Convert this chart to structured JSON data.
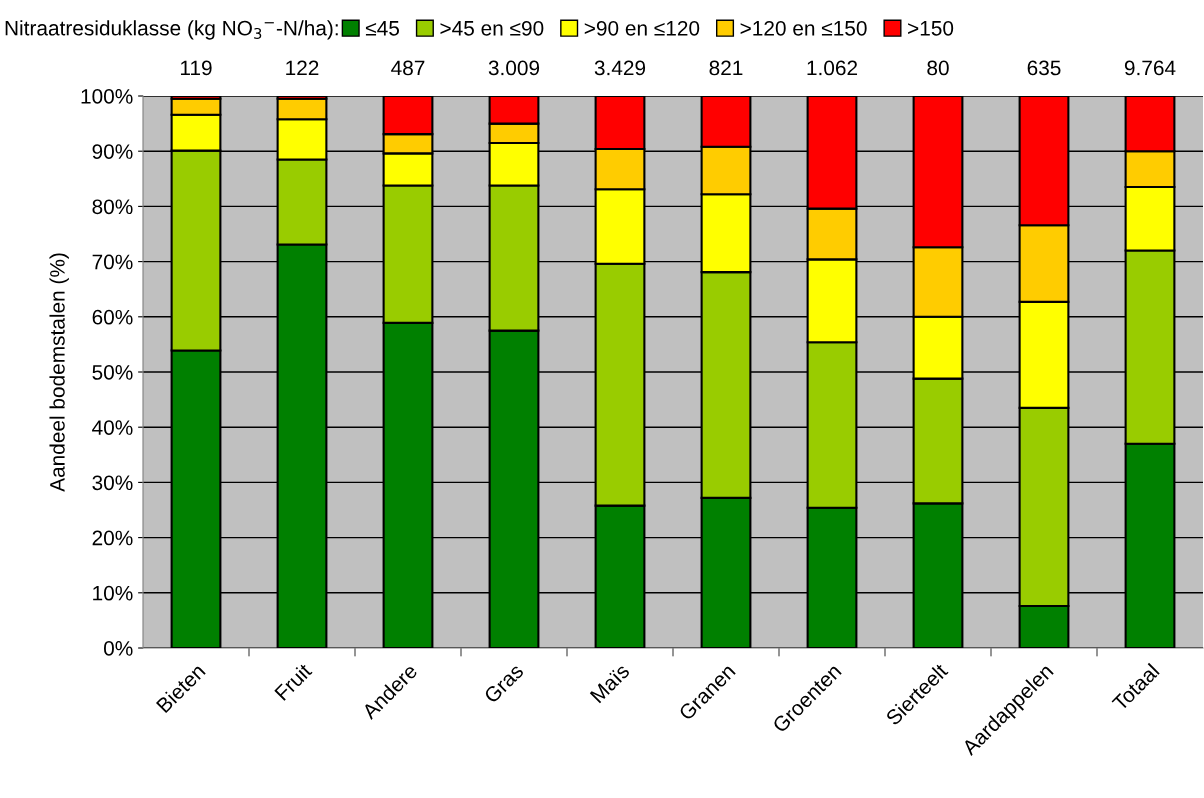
{
  "chart_data": {
    "type": "bar",
    "stacked": true,
    "ylabel": "Aandeel bodemstalen (%)",
    "legend_title": "Nitraatresiduklasse (kg NO$_{3}$$^{−}$-N/ha):",
    "legend": "top",
    "grid": "y",
    "categories": [
      "Bieten",
      "Fruit",
      "Andere",
      "Gras",
      "Maïs",
      "Granen",
      "Groenten",
      "Sierteelt",
      "Aardappelen",
      "Totaal"
    ],
    "series": [
      {
        "name": "≤45",
        "color": "#008000",
        "values": [
          53.9,
          73.1,
          58.9,
          57.5,
          25.8,
          27.2,
          25.4,
          26.2,
          7.6,
          37.0
        ]
      },
      {
        "name": ">45 en ≤90",
        "color": "#99cc00",
        "values": [
          36.2,
          15.4,
          24.9,
          26.3,
          43.8,
          40.9,
          30.0,
          22.6,
          35.9,
          35.0
        ]
      },
      {
        "name": ">90 en ≤120",
        "color": "#ffff00",
        "values": [
          6.5,
          7.3,
          5.8,
          7.7,
          13.5,
          14.1,
          15.0,
          11.2,
          19.2,
          11.5
        ]
      },
      {
        "name": ">120 en ≤150",
        "color": "#ffcc00",
        "values": [
          2.9,
          3.7,
          3.5,
          3.5,
          7.3,
          8.6,
          9.2,
          12.6,
          13.9,
          6.5
        ]
      },
      {
        "name": ">150",
        "color": "#ff0000",
        "values": [
          0.5,
          0.5,
          6.9,
          5.0,
          9.6,
          9.2,
          20.4,
          27.4,
          23.4,
          10.0
        ]
      }
    ],
    "annotations": [
      "119",
      "122",
      "487",
      "3.009",
      "3.429",
      "821",
      "1.062",
      "80",
      "635",
      "9.764"
    ],
    "ylim": [
      0,
      100
    ],
    "yticks": [
      {
        "value": 0,
        "label": "0%"
      },
      {
        "value": 10,
        "label": "10%"
      },
      {
        "value": 20,
        "label": "20%"
      },
      {
        "value": 30,
        "label": "30%"
      },
      {
        "value": 40,
        "label": "40%"
      },
      {
        "value": 50,
        "label": "50%"
      },
      {
        "value": 60,
        "label": "60%"
      },
      {
        "value": 70,
        "label": "70%"
      },
      {
        "value": 80,
        "label": "80%"
      },
      {
        "value": 90,
        "label": "90%"
      },
      {
        "value": 100,
        "label": "100%"
      }
    ]
  }
}
